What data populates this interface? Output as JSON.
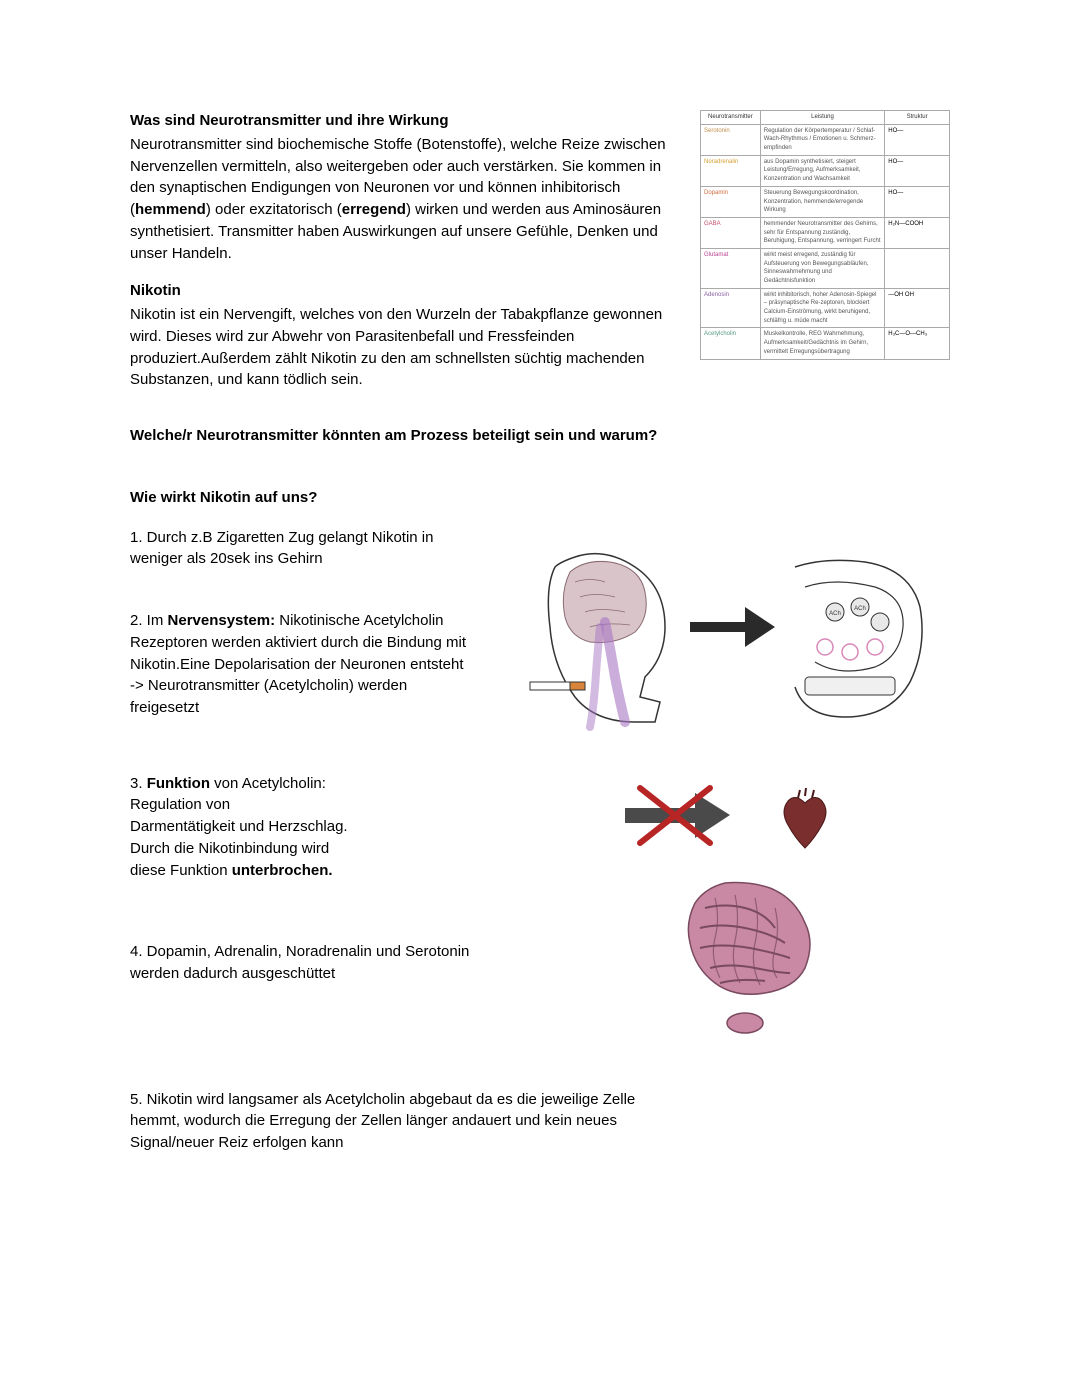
{
  "heading1": "Was sind Neurotransmitter und ihre Wirkung",
  "para1_a": "Neurotransmitter sind biochemische Stoffe (Botenstoffe), welche Reize zwischen Nervenzellen vermitteln, also weitergeben oder auch verstärken. Sie kommen in den synaptischen Endigungen von Neuronen vor und können inhibitorisch (",
  "para1_b": "hemmend",
  "para1_c": ") oder exzitatorisch (",
  "para1_d": "erregend",
  "para1_e": ") wirken und werden aus Aminosäuren synthetisiert. Transmitter haben Auswirkungen auf unsere Gefühle, Denken und unser Handeln.",
  "heading2": "Nikotin",
  "para2": " Nikotin ist ein Nervengift, welches von den Wurzeln der Tabakpflanze gewonnen wird. Dieses wird zur Abwehr von Parasitenbefall und Fressfeinden produziert.Außerdem zählt Nikotin zu den am schnellsten süchtig machenden Substanzen, und kann tödlich sein.",
  "question": "Welche/r Neurotransmitter könnten am Prozess beteiligt sein und warum?",
  "heading3": "Wie wirkt Nikotin auf uns?",
  "step1": "1. Durch z.B Zigaretten Zug gelangt Nikotin in weniger als 20sek ins Gehirn",
  "step2_a": "2. Im ",
  "step2_b": "Nervensystem:",
  "step2_c": " Nikotinische Acetylcholin Rezeptoren werden aktiviert durch die Bindung mit Nikotin.Eine Depolarisation der Neuronen entsteht -> Neurotransmitter (Acetylcholin) werden freigesetzt",
  "step3_a": "3. ",
  "step3_b": "Funktion",
  "step3_c": " von Acetylcholin:",
  "step3_d": "Regulation von",
  "step3_e": "Darmentätigkeit und Herzschlag.",
  "step3_f": "Durch die Nikotinbindung wird",
  "step3_g": " diese Funktion ",
  "step3_h": "unterbrochen.",
  "step4": "4. Dopamin, Adrenalin, Noradrenalin und Serotonin werden dadurch ausgeschüttet",
  "step5": "5. Nikotin wird langsamer als Acetylcholin abgebaut da es die jeweilige Zelle hemmt, wodurch die Erregung der Zellen länger andauert und kein neues Signal/neuer Reiz erfolgen kann",
  "nt_table": {
    "header_col1": "Neurotransmitter",
    "header_col2": "Leistung",
    "header_col3": "Struktur",
    "rows": [
      {
        "name": "Serotonin",
        "name_color": "#c08f4a",
        "desc": "Regulation der Körpertemperatur / Schlaf-Wach-Rhythmus / Emotionen u. Schmerz­empfinden",
        "struct": "HO—"
      },
      {
        "name": "Noradrenalin",
        "name_color": "#d4a032",
        "desc": "aus Dopamin synthetisiert, steigert Leistung/Erregung, Aufmerksamkeit, Konzentration und Wachsamkeit",
        "struct": "HO—"
      },
      {
        "name": "Dopamin",
        "name_color": "#d26b3e",
        "desc": "Steuerung Bewegungskoordination, Konzentration, hemmende/erregende Wirkung",
        "struct": "HO—"
      },
      {
        "name": "GABA",
        "name_color": "#c94d6f",
        "desc": "hemmender Neurotransmitter des Gehirns, sehr für Entspannung zuständig, Beruhigung, Entspannung, verringert Furcht",
        "struct": "H₂N—COOH"
      },
      {
        "name": "Glutamat",
        "name_color": "#b94494",
        "desc": "wirkt meist erregend, zuständig für Aufsteuerung von Bewegungsabläufen, Sinneswahrnehmung und Gedächtnisfunktion",
        "struct": ""
      },
      {
        "name": "Adenosin",
        "name_color": "#8a5fa3",
        "desc": "wirkt inhibitorisch, hoher Adenosin-Spiegel – präsynaptische Re-zeptoren, blockiert Calcium-Einströmung, wirkt beruhigend, schläfrig u. müde macht",
        "struct": "—OH OH"
      },
      {
        "name": "Acetylcholin",
        "name_color": "#5a9b89",
        "desc": "Muskelkontrolle, REG Wahrnehmung, Aufmerksamkeit/Gedächtnis im Gehirn, vermittelt Erregungsübertragung",
        "struct": "H₃C—O—CH₃"
      }
    ]
  },
  "colors": {
    "purple_smoke": "#a876c4",
    "cigarette_orange": "#d8843a",
    "arrow_dark": "#2a2a2a",
    "red_x": "#b82525",
    "heart": "#7a2e2e",
    "intestine_pink": "#c988a4",
    "intestine_dark": "#7a4a5e"
  }
}
